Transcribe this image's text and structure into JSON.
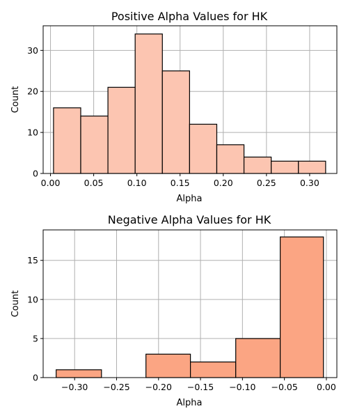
{
  "chart_data": [
    {
      "type": "bar",
      "title": "Positive Alpha Values for HK",
      "xlabel": "Alpha",
      "ylabel": "Count",
      "bar_color": "#fcc5b1",
      "xlim": [
        -0.0085,
        0.3315
      ],
      "ylim": [
        0,
        36
      ],
      "xticks": [
        0.0,
        0.05,
        0.1,
        0.15,
        0.2,
        0.25,
        0.3
      ],
      "xtick_labels": [
        "0.00",
        "0.05",
        "0.10",
        "0.15",
        "0.20",
        "0.25",
        "0.30"
      ],
      "yticks": [
        0,
        10,
        20,
        30
      ],
      "ytick_labels": [
        "0",
        "10",
        "20",
        "30"
      ],
      "grid": true,
      "bins": [
        {
          "start": 0.0035,
          "end": 0.035,
          "count": 16
        },
        {
          "start": 0.035,
          "end": 0.0665,
          "count": 14
        },
        {
          "start": 0.0665,
          "end": 0.098,
          "count": 21
        },
        {
          "start": 0.098,
          "end": 0.1295,
          "count": 34
        },
        {
          "start": 0.1295,
          "end": 0.161,
          "count": 25
        },
        {
          "start": 0.161,
          "end": 0.1925,
          "count": 12
        },
        {
          "start": 0.1925,
          "end": 0.224,
          "count": 7
        },
        {
          "start": 0.224,
          "end": 0.2555,
          "count": 4
        },
        {
          "start": 0.2555,
          "end": 0.287,
          "count": 3
        },
        {
          "start": 0.287,
          "end": 0.3185,
          "count": 3
        }
      ]
    },
    {
      "type": "bar",
      "title": "Negative Alpha Values for HK",
      "xlabel": "Alpha",
      "ylabel": "Count",
      "bar_color": "#fba583",
      "xlim": [
        -0.3375,
        0.0125
      ],
      "ylim": [
        0,
        18.9
      ],
      "xticks": [
        -0.3,
        -0.25,
        -0.2,
        -0.15,
        -0.1,
        -0.05,
        0.0
      ],
      "xtick_labels": [
        "−0.30",
        "−0.25",
        "−0.20",
        "−0.15",
        "−0.10",
        "−0.05",
        "0.00"
      ],
      "yticks": [
        0,
        5,
        10,
        15
      ],
      "ytick_labels": [
        "0",
        "5",
        "10",
        "15"
      ],
      "grid": true,
      "bins": [
        {
          "start": -0.322,
          "end": -0.268,
          "count": 1
        },
        {
          "start": -0.268,
          "end": -0.215,
          "count": 0
        },
        {
          "start": -0.215,
          "end": -0.162,
          "count": 3
        },
        {
          "start": -0.162,
          "end": -0.108,
          "count": 2
        },
        {
          "start": -0.108,
          "end": -0.055,
          "count": 5
        },
        {
          "start": -0.055,
          "end": -0.0035,
          "count": 18
        }
      ]
    }
  ]
}
